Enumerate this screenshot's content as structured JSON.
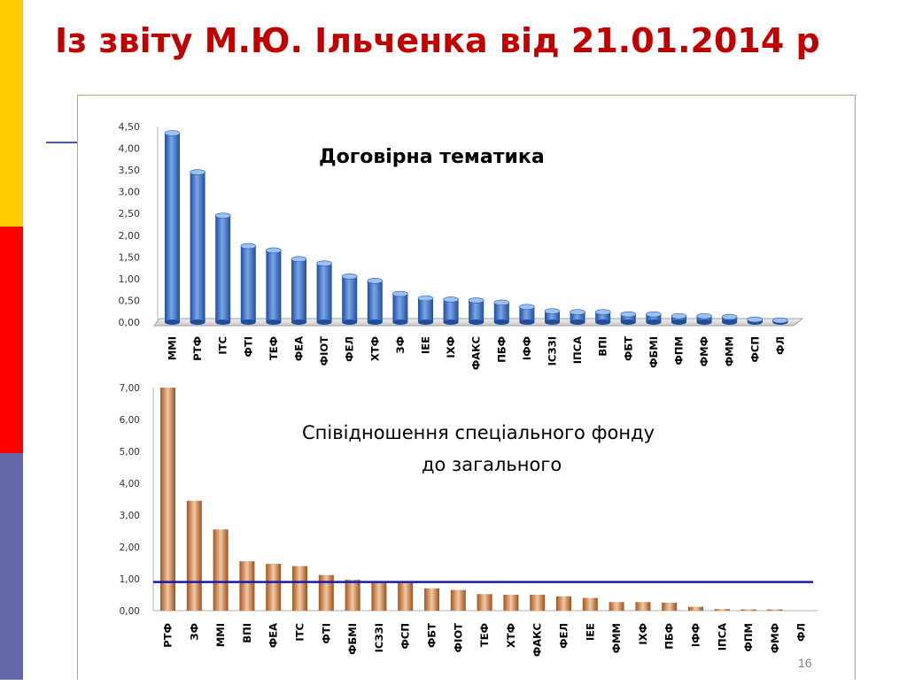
{
  "title": "Із звіту М.Ю. Ільченка від 21.01.2014 р",
  "page_number": "16",
  "colors": {
    "title": "#c00000",
    "stripe_top": "#ffcc00",
    "stripe_mid": "#ff0000",
    "stripe_bottom": "#6666aa",
    "bars_top": "#3a6fc4",
    "bars_bottom": "#b46a3a",
    "reference_line": "#1a1ab0"
  },
  "chart_data": [
    {
      "type": "bar",
      "title": "Договірна тематика",
      "categories": [
        "ММІ",
        "РТФ",
        "ІТС",
        "ФТІ",
        "ТЕФ",
        "ФЕА",
        "ФІОТ",
        "ФЕЛ",
        "ХТФ",
        "ЗФ",
        "ІЕЕ",
        "ІХФ",
        "ФАКС",
        "ПБФ",
        "ІФФ",
        "ІСЗЗІ",
        "ІПСА",
        "ВПІ",
        "ФБТ",
        "ФБМІ",
        "ФПМ",
        "ФМФ",
        "ФММ",
        "ФСП",
        "ФЛ"
      ],
      "values": [
        4.35,
        3.45,
        2.45,
        1.75,
        1.65,
        1.45,
        1.35,
        1.05,
        0.95,
        0.65,
        0.55,
        0.52,
        0.5,
        0.45,
        0.35,
        0.25,
        0.23,
        0.23,
        0.18,
        0.18,
        0.14,
        0.14,
        0.12,
        0.06,
        0.04
      ],
      "ylim": [
        0,
        4.5
      ],
      "y_ticks": [
        "0,00",
        "0,50",
        "1,00",
        "1,50",
        "2,00",
        "2,50",
        "3,00",
        "3,50",
        "4,00",
        "4,50"
      ],
      "style": "3d-cylinder"
    },
    {
      "type": "bar",
      "title": "Співідношення спеціального фонду до загального",
      "title_lines": [
        "Співідношення спеціального фонду",
        "до загального"
      ],
      "categories": [
        "РТФ",
        "ЗФ",
        "ММІ",
        "ВПІ",
        "ФЕА",
        "ІТС",
        "ФТІ",
        "ФБМІ",
        "ІСЗЗІ",
        "ФСП",
        "ФБТ",
        "ФІОТ",
        "ТЕФ",
        "ХТФ",
        "ФАКС",
        "ФЕЛ",
        "ІЕЕ",
        "ФММ",
        "ІХФ",
        "ПБФ",
        "ІФФ",
        "ІПСА",
        "ФПМ",
        "ФМФ",
        "ФЛ"
      ],
      "values": [
        7.0,
        3.45,
        2.55,
        1.55,
        1.47,
        1.4,
        1.12,
        0.97,
        0.87,
        0.87,
        0.7,
        0.65,
        0.52,
        0.5,
        0.5,
        0.45,
        0.4,
        0.27,
        0.27,
        0.25,
        0.12,
        0.05,
        0.04,
        0.04,
        0.0
      ],
      "ylim": [
        0,
        7.0
      ],
      "y_ticks": [
        "0,00",
        "1,00",
        "2,00",
        "3,00",
        "4,00",
        "5,00",
        "6,00",
        "7,00"
      ],
      "reference_line": 0.9
    }
  ]
}
